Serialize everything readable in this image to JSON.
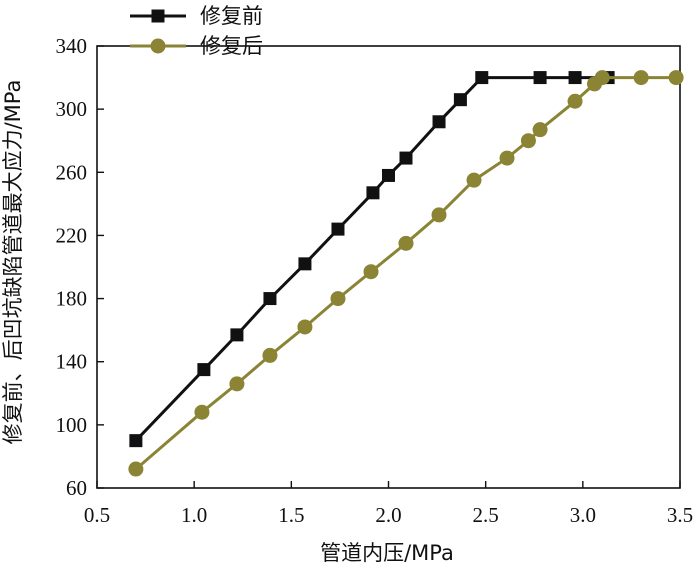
{
  "chart_data": {
    "type": "line",
    "xlabel": "管道内压/MPa",
    "ylabel": "修复前、后凹坑缺陷管道最大应力/MPa",
    "xlim": [
      0.5,
      3.5
    ],
    "ylim": [
      60,
      340
    ],
    "xticks": [
      "0.5",
      "1.0",
      "1.5",
      "2.0",
      "2.5",
      "3.0",
      "3.5"
    ],
    "yticks": [
      "60",
      "100",
      "140",
      "180",
      "220",
      "260",
      "300",
      "340"
    ],
    "grid": false,
    "legend_position": "top-left",
    "series": [
      {
        "name": "修复前",
        "color": "#111111",
        "marker": "square",
        "x": [
          0.7,
          1.05,
          1.22,
          1.39,
          1.57,
          1.74,
          1.92,
          2.0,
          2.09,
          2.26,
          2.37,
          2.48,
          2.78,
          2.96,
          3.13
        ],
        "y": [
          90,
          135,
          157,
          180,
          202,
          224,
          247,
          258,
          269,
          292,
          306,
          320,
          320,
          320,
          320
        ]
      },
      {
        "name": "修复后",
        "color": "#8a8434",
        "marker": "circle",
        "x": [
          0.7,
          1.04,
          1.22,
          1.39,
          1.57,
          1.74,
          1.91,
          2.09,
          2.26,
          2.44,
          2.61,
          2.72,
          2.78,
          2.96,
          3.06,
          3.1,
          3.3,
          3.48
        ],
        "y": [
          72,
          108,
          126,
          144,
          162,
          180,
          197,
          215,
          233,
          255,
          269,
          280,
          287,
          305,
          316,
          320,
          320,
          320
        ]
      }
    ]
  }
}
